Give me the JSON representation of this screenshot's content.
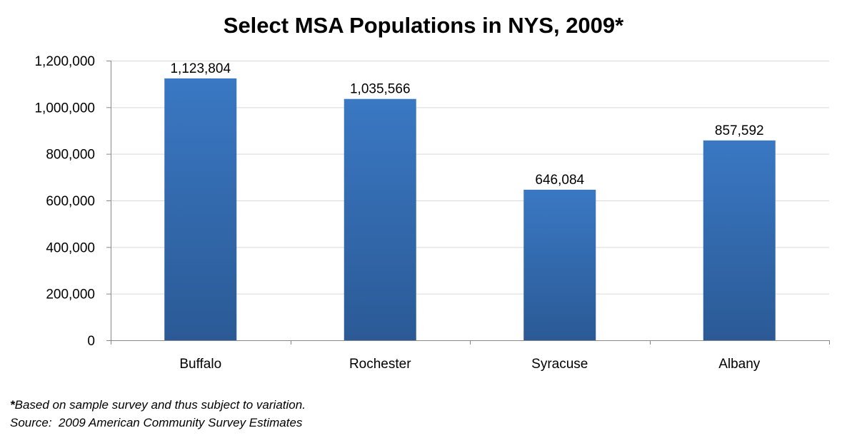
{
  "chart_data": {
    "type": "bar",
    "title": "Select MSA Populations in NYS, 2009*",
    "categories": [
      "Buffalo",
      "Rochester",
      "Syracuse",
      "Albany"
    ],
    "values": [
      1123804,
      1035566,
      646084,
      857592
    ],
    "data_labels": [
      "1,123,804",
      "1,035,566",
      "646,084",
      "857,592"
    ],
    "xlabel": "",
    "ylabel": "",
    "ylim": [
      0,
      1200000
    ],
    "yticks": [
      0,
      200000,
      400000,
      600000,
      800000,
      1000000,
      1200000
    ],
    "ytick_labels": [
      "0",
      "200,000",
      "400,000",
      "600,000",
      "800,000",
      "1,000,000",
      "1,200,000"
    ],
    "grid": true,
    "bar_color": "#3a78c3",
    "bar_color_dark": "#2b5a96"
  },
  "footnotes": {
    "star": "*",
    "note": "Based on sample survey and thus subject to variation.",
    "source": "Source:  2009 American Community Survey Estimates"
  }
}
